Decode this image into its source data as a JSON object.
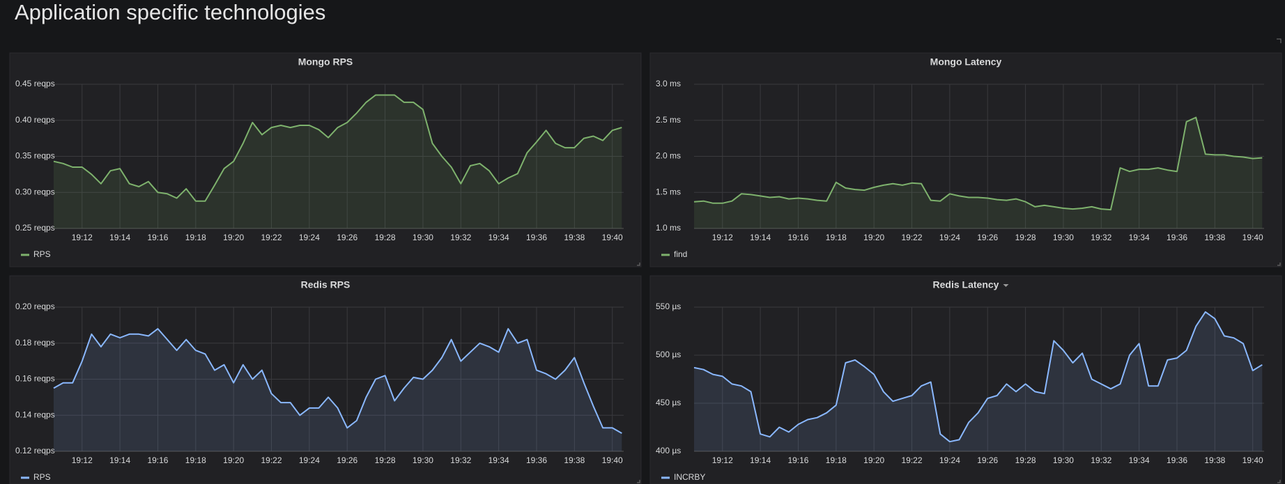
{
  "header": {
    "title": "Application specific technologies"
  },
  "chart_data": [
    {
      "type": "line",
      "title": "Mongo RPS",
      "x": [
        10.5,
        11,
        11.5,
        12,
        12.5,
        13,
        13.5,
        14,
        14.5,
        15,
        15.5,
        16,
        16.5,
        17,
        17.5,
        18,
        18.5,
        19,
        19.5,
        20,
        20.5,
        21,
        21.5,
        22,
        22.5,
        23,
        23.5,
        24,
        24.5,
        25,
        25.5,
        26,
        26.5,
        27,
        27.5,
        28,
        28.5,
        29,
        29.5,
        30,
        30.5,
        31,
        31.5,
        32,
        32.5,
        33,
        33.5,
        34,
        34.5,
        35,
        35.5,
        36,
        36.5,
        37,
        37.5,
        38,
        38.5,
        39,
        39.5,
        40,
        40.5
      ],
      "series": [
        {
          "name": "RPS",
          "color": "#7eb26d",
          "values": [
            0.343,
            0.34,
            0.335,
            0.335,
            0.325,
            0.312,
            0.33,
            0.333,
            0.312,
            0.308,
            0.315,
            0.3,
            0.298,
            0.292,
            0.305,
            0.288,
            0.288,
            0.31,
            0.333,
            0.343,
            0.368,
            0.397,
            0.38,
            0.39,
            0.393,
            0.39,
            0.393,
            0.393,
            0.387,
            0.376,
            0.39,
            0.397,
            0.41,
            0.425,
            0.435,
            0.435,
            0.435,
            0.425,
            0.425,
            0.415,
            0.368,
            0.35,
            0.335,
            0.312,
            0.337,
            0.34,
            0.33,
            0.312,
            0.32,
            0.326,
            0.355,
            0.37,
            0.386,
            0.368,
            0.362,
            0.362,
            0.375,
            0.378,
            0.372,
            0.386,
            0.39
          ]
        }
      ],
      "xlim": [
        10.5,
        40.6
      ],
      "xticks": [
        {
          "value": 12,
          "label": "19:12"
        },
        {
          "value": 14,
          "label": "19:14"
        },
        {
          "value": 16,
          "label": "19:16"
        },
        {
          "value": 18,
          "label": "19:18"
        },
        {
          "value": 20,
          "label": "19:20"
        },
        {
          "value": 22,
          "label": "19:22"
        },
        {
          "value": 24,
          "label": "19:24"
        },
        {
          "value": 26,
          "label": "19:26"
        },
        {
          "value": 28,
          "label": "19:28"
        },
        {
          "value": 30,
          "label": "19:30"
        },
        {
          "value": 32,
          "label": "19:32"
        },
        {
          "value": 34,
          "label": "19:34"
        },
        {
          "value": 36,
          "label": "19:36"
        },
        {
          "value": 38,
          "label": "19:38"
        },
        {
          "value": 40,
          "label": "19:40"
        }
      ],
      "ylim": [
        0.25,
        0.45
      ],
      "yticks": [
        {
          "value": 0.25,
          "label": "0.25 reqps"
        },
        {
          "value": 0.3,
          "label": "0.30 reqps"
        },
        {
          "value": 0.35,
          "label": "0.35 reqps"
        },
        {
          "value": 0.4,
          "label": "0.40 reqps"
        },
        {
          "value": 0.45,
          "label": "0.45 reqps"
        }
      ],
      "grid": true
    },
    {
      "type": "line",
      "title": "Mongo Latency",
      "x": [
        10.5,
        11,
        11.5,
        12,
        12.5,
        13,
        13.5,
        14,
        14.5,
        15,
        15.5,
        16,
        16.5,
        17,
        17.5,
        18,
        18.5,
        19,
        19.5,
        20,
        20.5,
        21,
        21.5,
        22,
        22.5,
        23,
        23.5,
        24,
        24.5,
        25,
        25.5,
        26,
        26.5,
        27,
        27.5,
        28,
        28.5,
        29,
        29.5,
        30,
        30.5,
        31,
        31.5,
        32,
        32.5,
        33,
        33.5,
        34,
        34.5,
        35,
        35.5,
        36,
        36.5,
        37,
        37.5,
        38,
        38.5,
        39,
        39.5,
        40,
        40.5
      ],
      "series": [
        {
          "name": "find",
          "color": "#7eb26d",
          "values": [
            1.37,
            1.38,
            1.35,
            1.35,
            1.38,
            1.48,
            1.47,
            1.45,
            1.43,
            1.44,
            1.41,
            1.42,
            1.41,
            1.39,
            1.38,
            1.64,
            1.56,
            1.54,
            1.53,
            1.57,
            1.6,
            1.62,
            1.6,
            1.63,
            1.62,
            1.39,
            1.38,
            1.48,
            1.45,
            1.43,
            1.43,
            1.42,
            1.4,
            1.39,
            1.41,
            1.37,
            1.3,
            1.32,
            1.3,
            1.28,
            1.27,
            1.28,
            1.3,
            1.27,
            1.26,
            1.84,
            1.79,
            1.82,
            1.82,
            1.84,
            1.81,
            1.79,
            2.48,
            2.54,
            2.03,
            2.02,
            2.02,
            2.0,
            1.99,
            1.97,
            1.98
          ]
        }
      ],
      "xlim": [
        10.5,
        40.6
      ],
      "xticks": [
        {
          "value": 12,
          "label": "19:12"
        },
        {
          "value": 14,
          "label": "19:14"
        },
        {
          "value": 16,
          "label": "19:16"
        },
        {
          "value": 18,
          "label": "19:18"
        },
        {
          "value": 20,
          "label": "19:20"
        },
        {
          "value": 22,
          "label": "19:22"
        },
        {
          "value": 24,
          "label": "19:24"
        },
        {
          "value": 26,
          "label": "19:26"
        },
        {
          "value": 28,
          "label": "19:28"
        },
        {
          "value": 30,
          "label": "19:30"
        },
        {
          "value": 32,
          "label": "19:32"
        },
        {
          "value": 34,
          "label": "19:34"
        },
        {
          "value": 36,
          "label": "19:36"
        },
        {
          "value": 38,
          "label": "19:38"
        },
        {
          "value": 40,
          "label": "19:40"
        }
      ],
      "ylim": [
        1.0,
        3.0
      ],
      "yticks": [
        {
          "value": 1.0,
          "label": "1.0 ms"
        },
        {
          "value": 1.5,
          "label": "1.5 ms"
        },
        {
          "value": 2.0,
          "label": "2.0 ms"
        },
        {
          "value": 2.5,
          "label": "2.5 ms"
        },
        {
          "value": 3.0,
          "label": "3.0 ms"
        }
      ],
      "grid": true
    },
    {
      "type": "line",
      "title": "Redis RPS",
      "x": [
        10.5,
        11,
        11.5,
        12,
        12.5,
        13,
        13.5,
        14,
        14.5,
        15,
        15.5,
        16,
        16.5,
        17,
        17.5,
        18,
        18.5,
        19,
        19.5,
        20,
        20.5,
        21,
        21.5,
        22,
        22.5,
        23,
        23.5,
        24,
        24.5,
        25,
        25.5,
        26,
        26.5,
        27,
        27.5,
        28,
        28.5,
        29,
        29.5,
        30,
        30.5,
        31,
        31.5,
        32,
        32.5,
        33,
        33.5,
        34,
        34.5,
        35,
        35.5,
        36,
        36.5,
        37,
        37.5,
        38,
        38.5,
        39,
        39.5,
        40,
        40.5
      ],
      "series": [
        {
          "name": "RPS",
          "color": "#8ab8ff",
          "values": [
            0.155,
            0.158,
            0.158,
            0.17,
            0.185,
            0.178,
            0.185,
            0.183,
            0.185,
            0.185,
            0.184,
            0.188,
            0.182,
            0.176,
            0.182,
            0.176,
            0.174,
            0.165,
            0.168,
            0.158,
            0.168,
            0.16,
            0.165,
            0.152,
            0.147,
            0.147,
            0.14,
            0.144,
            0.144,
            0.15,
            0.144,
            0.133,
            0.137,
            0.15,
            0.16,
            0.162,
            0.148,
            0.155,
            0.161,
            0.16,
            0.165,
            0.172,
            0.182,
            0.17,
            0.175,
            0.18,
            0.178,
            0.175,
            0.188,
            0.18,
            0.182,
            0.165,
            0.163,
            0.16,
            0.165,
            0.172,
            0.158,
            0.145,
            0.133,
            0.133,
            0.13
          ]
        }
      ],
      "xlim": [
        10.5,
        40.6
      ],
      "xticks": [
        {
          "value": 12,
          "label": "19:12"
        },
        {
          "value": 14,
          "label": "19:14"
        },
        {
          "value": 16,
          "label": "19:16"
        },
        {
          "value": 18,
          "label": "19:18"
        },
        {
          "value": 20,
          "label": "19:20"
        },
        {
          "value": 22,
          "label": "19:22"
        },
        {
          "value": 24,
          "label": "19:24"
        },
        {
          "value": 26,
          "label": "19:26"
        },
        {
          "value": 28,
          "label": "19:28"
        },
        {
          "value": 30,
          "label": "19:30"
        },
        {
          "value": 32,
          "label": "19:32"
        },
        {
          "value": 34,
          "label": "19:34"
        },
        {
          "value": 36,
          "label": "19:36"
        },
        {
          "value": 38,
          "label": "19:38"
        },
        {
          "value": 40,
          "label": "19:40"
        }
      ],
      "ylim": [
        0.12,
        0.2
      ],
      "yticks": [
        {
          "value": 0.12,
          "label": "0.12 reqps"
        },
        {
          "value": 0.14,
          "label": "0.14 reqps"
        },
        {
          "value": 0.16,
          "label": "0.16 reqps"
        },
        {
          "value": 0.18,
          "label": "0.18 reqps"
        },
        {
          "value": 0.2,
          "label": "0.20 reqps"
        }
      ],
      "grid": true
    },
    {
      "type": "line",
      "title": "Redis Latency",
      "x": [
        10.5,
        11,
        11.5,
        12,
        12.5,
        13,
        13.5,
        14,
        14.5,
        15,
        15.5,
        16,
        16.5,
        17,
        17.5,
        18,
        18.5,
        19,
        19.5,
        20,
        20.5,
        21,
        21.5,
        22,
        22.5,
        23,
        23.5,
        24,
        24.5,
        25,
        25.5,
        26,
        26.5,
        27,
        27.5,
        28,
        28.5,
        29,
        29.5,
        30,
        30.5,
        31,
        31.5,
        32,
        32.5,
        33,
        33.5,
        34,
        34.5,
        35,
        35.5,
        36,
        36.5,
        37,
        37.5,
        38,
        38.5,
        39,
        39.5,
        40,
        40.5
      ],
      "series": [
        {
          "name": "INCRBY",
          "color": "#8ab8ff",
          "values": [
            487,
            485,
            480,
            478,
            470,
            468,
            462,
            418,
            415,
            425,
            420,
            428,
            433,
            435,
            440,
            448,
            492,
            495,
            488,
            480,
            462,
            452,
            455,
            458,
            468,
            472,
            418,
            410,
            412,
            430,
            440,
            455,
            458,
            470,
            462,
            470,
            462,
            460,
            515,
            505,
            492,
            502,
            475,
            470,
            465,
            470,
            500,
            512,
            468,
            468,
            495,
            497,
            505,
            530,
            545,
            538,
            520,
            518,
            512,
            484,
            490
          ]
        }
      ],
      "xlim": [
        10.5,
        40.6
      ],
      "xticks": [
        {
          "value": 12,
          "label": "19:12"
        },
        {
          "value": 14,
          "label": "19:14"
        },
        {
          "value": 16,
          "label": "19:16"
        },
        {
          "value": 18,
          "label": "19:18"
        },
        {
          "value": 20,
          "label": "19:20"
        },
        {
          "value": 22,
          "label": "19:22"
        },
        {
          "value": 24,
          "label": "19:24"
        },
        {
          "value": 26,
          "label": "19:26"
        },
        {
          "value": 28,
          "label": "19:28"
        },
        {
          "value": 30,
          "label": "19:30"
        },
        {
          "value": 32,
          "label": "19:32"
        },
        {
          "value": 34,
          "label": "19:34"
        },
        {
          "value": 36,
          "label": "19:36"
        },
        {
          "value": 38,
          "label": "19:38"
        },
        {
          "value": 40,
          "label": "19:40"
        }
      ],
      "ylim": [
        400,
        550
      ],
      "yticks": [
        {
          "value": 400,
          "label": "400 µs"
        },
        {
          "value": 450,
          "label": "450 µs"
        },
        {
          "value": 500,
          "label": "500 µs"
        },
        {
          "value": 550,
          "label": "550 µs"
        }
      ],
      "grid": true
    }
  ]
}
